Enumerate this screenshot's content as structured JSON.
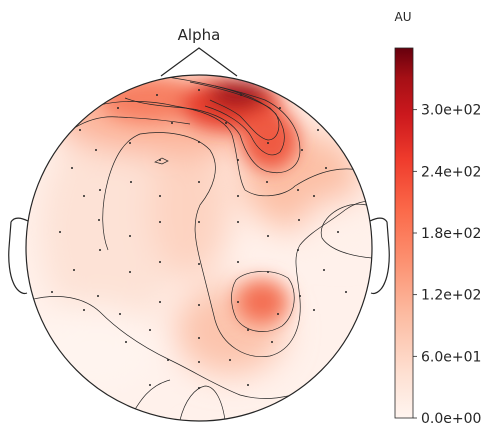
{
  "chart_data": {
    "type": "heatmap",
    "subtype": "eeg-topomap",
    "title": "Alpha",
    "colorbar": {
      "label": "AU",
      "cmap": "Reds",
      "range": [
        0,
        360
      ],
      "ticks": [
        0,
        60,
        120,
        180,
        240,
        300
      ],
      "tick_labels": [
        "0.0e+00",
        "6.0e+01",
        "1.2e+02",
        "1.8e+02",
        "2.4e+02",
        "3.0e+02"
      ]
    },
    "colors": {
      "low": "#fff5f0",
      "mid": "#fb6a4a",
      "high": "#67000d",
      "outline": "#262626"
    },
    "grid": false,
    "sensor_markers": "dots",
    "contours": true
  }
}
